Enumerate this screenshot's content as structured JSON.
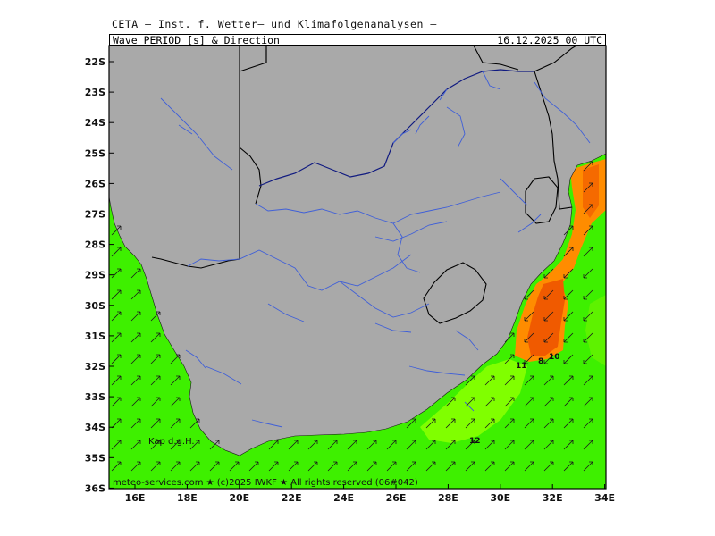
{
  "header": {
    "title": "CETA — Inst. f. Wetter— und Klimafolgenanalysen —",
    "parameter": "Wave_PERIOD_[s]_&_Direction",
    "datetime": "16.12.2025 00 UTC"
  },
  "axes": {
    "lat_labels": [
      "22S",
      "23S",
      "24S",
      "25S",
      "26S",
      "27S",
      "28S",
      "29S",
      "30S",
      "31S",
      "32S",
      "33S",
      "34S",
      "35S",
      "36S"
    ],
    "lon_labels": [
      "16E",
      "18E",
      "20E",
      "22E",
      "24E",
      "26E",
      "28E",
      "30E",
      "32E",
      "34E"
    ]
  },
  "annotations": {
    "place": "Kap d.g.H.",
    "contour_labels": [
      "11",
      "8",
      "10",
      "12"
    ]
  },
  "footer": {
    "credit": "meteo-services.com ★ (c)2025 IWKF ★ All rights reserved (06#042)"
  },
  "colors": {
    "land": "#a9a9a9",
    "sea_green": "#3ef000",
    "sea_lightgreen": "#80ff00",
    "sea_orange": "#ff8c00",
    "sea_darkorange": "#f05a00",
    "rivers": "#3f5fd8",
    "borders": "#000000",
    "river_navy": "#101a80"
  }
}
